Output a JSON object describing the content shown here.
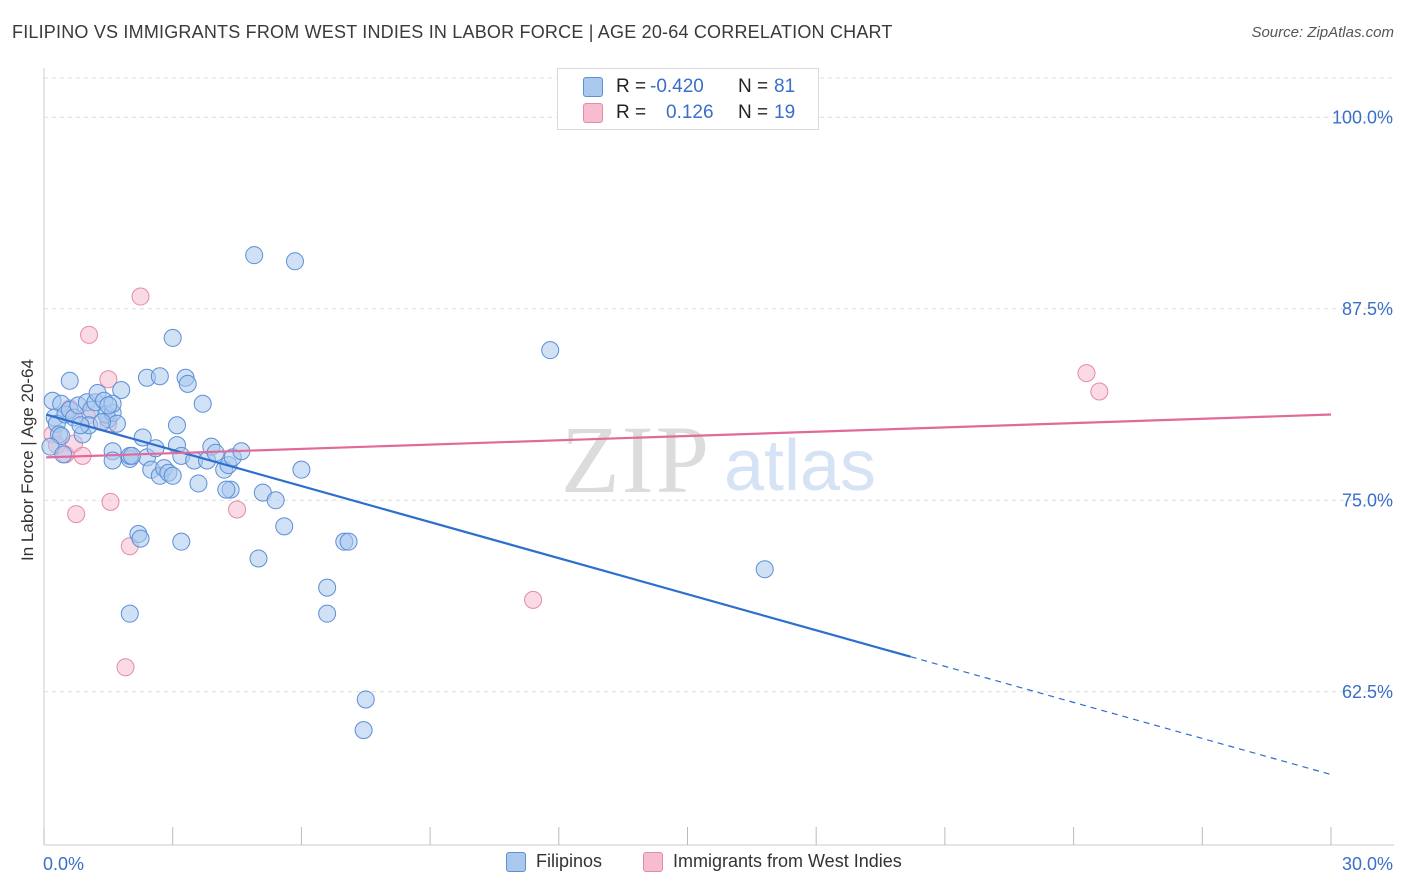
{
  "header": {
    "title": "FILIPINO VS IMMIGRANTS FROM WEST INDIES IN LABOR FORCE | AGE 20-64 CORRELATION CHART",
    "source": "Source: ZipAtlas.com"
  },
  "watermark": {
    "zip": "ZIP",
    "atlas": "atlas"
  },
  "colors": {
    "series1_fill": "#aac8ee",
    "series1_stroke": "#5b8fd6",
    "series1_line": "#2d6fcc",
    "series2_fill": "#f6bcd0",
    "series2_stroke": "#e68aab",
    "series2_line": "#e2699a",
    "axis_text": "#3a6fc8"
  },
  "stats": {
    "rows": [
      {
        "r_label": "R = ",
        "r_value": "-0.420",
        "n_label": "N = ",
        "n_value": "81"
      },
      {
        "r_label": "R = ",
        "r_value": "0.126",
        "n_label": "N = ",
        "n_value": "19"
      }
    ]
  },
  "chart_data": {
    "type": "scatter",
    "title": "FILIPINO VS IMMIGRANTS FROM WEST INDIES IN LABOR FORCE | AGE 20-64 CORRELATION CHART",
    "xlabel": "",
    "ylabel": "In Labor Force | Age 20-64",
    "xlim": [
      0,
      30
    ],
    "ylim": [
      52.5,
      103
    ],
    "x_tick_labels": [
      "0.0%",
      "30.0%"
    ],
    "y_ticks": [
      62.5,
      75.0,
      87.5,
      100.0
    ],
    "y_tick_labels": [
      "62.5%",
      "75.0%",
      "87.5%",
      "100.0%"
    ],
    "legend": [
      "Filipinos",
      "Immigrants from West Indies"
    ],
    "series": [
      {
        "name": "Filipinos",
        "R": -0.42,
        "N": 81,
        "trend": {
          "x_start": 0.05,
          "y_start": 80.6,
          "x_solid_end": 20.2,
          "x_end": 30.0,
          "y_end": 57.1
        },
        "points": [
          [
            0.2,
            81.5
          ],
          [
            0.4,
            81.3
          ],
          [
            0.25,
            80.4
          ],
          [
            0.3,
            80.0
          ],
          [
            0.5,
            80.6
          ],
          [
            0.35,
            79.3
          ],
          [
            0.6,
            80.9
          ],
          [
            0.4,
            79.2
          ],
          [
            0.7,
            80.4
          ],
          [
            0.8,
            81.2
          ],
          [
            0.9,
            79.3
          ],
          [
            0.6,
            82.8
          ],
          [
            1.0,
            81.4
          ],
          [
            1.1,
            80.9
          ],
          [
            1.05,
            79.9
          ],
          [
            1.2,
            81.4
          ],
          [
            1.25,
            82.0
          ],
          [
            1.4,
            81.5
          ],
          [
            1.5,
            80.3
          ],
          [
            1.45,
            80.6
          ],
          [
            1.6,
            80.7
          ],
          [
            1.7,
            80.0
          ],
          [
            1.8,
            82.2
          ],
          [
            1.6,
            81.3
          ],
          [
            1.6,
            78.2
          ],
          [
            1.6,
            77.6
          ],
          [
            2.0,
            77.7
          ],
          [
            2.0,
            77.9
          ],
          [
            2.3,
            79.1
          ],
          [
            2.4,
            77.8
          ],
          [
            2.5,
            77.0
          ],
          [
            2.6,
            78.4
          ],
          [
            2.7,
            76.6
          ],
          [
            2.8,
            77.1
          ],
          [
            2.9,
            76.8
          ],
          [
            3.0,
            76.6
          ],
          [
            3.1,
            78.6
          ],
          [
            3.2,
            77.9
          ],
          [
            3.1,
            79.9
          ],
          [
            2.4,
            83.0
          ],
          [
            2.7,
            83.1
          ],
          [
            3.0,
            85.6
          ],
          [
            3.3,
            83.0
          ],
          [
            3.35,
            82.6
          ],
          [
            3.5,
            77.6
          ],
          [
            3.6,
            76.1
          ],
          [
            3.7,
            81.3
          ],
          [
            3.8,
            77.6
          ],
          [
            3.9,
            78.5
          ],
          [
            4.0,
            78.1
          ],
          [
            4.2,
            77.0
          ],
          [
            4.3,
            77.3
          ],
          [
            4.35,
            75.7
          ],
          [
            4.4,
            77.8
          ],
          [
            4.6,
            78.2
          ],
          [
            4.9,
            91.0
          ],
          [
            5.0,
            71.2
          ],
          [
            5.1,
            75.5
          ],
          [
            5.4,
            75.0
          ],
          [
            5.6,
            73.3
          ],
          [
            5.85,
            90.6
          ],
          [
            6.0,
            77.0
          ],
          [
            6.6,
            69.3
          ],
          [
            6.6,
            67.6
          ],
          [
            7.0,
            72.3
          ],
          [
            7.1,
            72.3
          ],
          [
            7.5,
            62.0
          ],
          [
            7.45,
            60.0
          ],
          [
            2.0,
            67.6
          ],
          [
            2.2,
            72.8
          ],
          [
            2.25,
            72.5
          ],
          [
            3.2,
            72.3
          ],
          [
            11.8,
            84.8
          ],
          [
            16.8,
            70.5
          ],
          [
            0.15,
            78.5
          ],
          [
            0.45,
            78.0
          ],
          [
            0.85,
            79.9
          ],
          [
            1.35,
            80.1
          ],
          [
            1.5,
            81.2
          ],
          [
            2.05,
            77.9
          ],
          [
            4.25,
            75.7
          ]
        ]
      },
      {
        "name": "Immigrants from West Indies",
        "R": 0.126,
        "N": 19,
        "trend": {
          "x_start": 0.05,
          "y_start": 77.8,
          "x_end": 30.0,
          "y_end": 80.6
        },
        "points": [
          [
            0.2,
            79.3
          ],
          [
            0.3,
            78.6
          ],
          [
            0.5,
            78.0
          ],
          [
            0.6,
            81.0
          ],
          [
            0.7,
            78.7
          ],
          [
            0.75,
            74.1
          ],
          [
            0.9,
            77.9
          ],
          [
            1.0,
            80.5
          ],
          [
            1.05,
            85.8
          ],
          [
            1.5,
            82.9
          ],
          [
            1.5,
            80.0
          ],
          [
            1.55,
            74.9
          ],
          [
            1.9,
            64.1
          ],
          [
            2.0,
            72.0
          ],
          [
            2.25,
            88.3
          ],
          [
            4.5,
            74.4
          ],
          [
            11.4,
            68.5
          ],
          [
            24.3,
            83.3
          ],
          [
            24.6,
            82.1
          ]
        ]
      }
    ]
  }
}
